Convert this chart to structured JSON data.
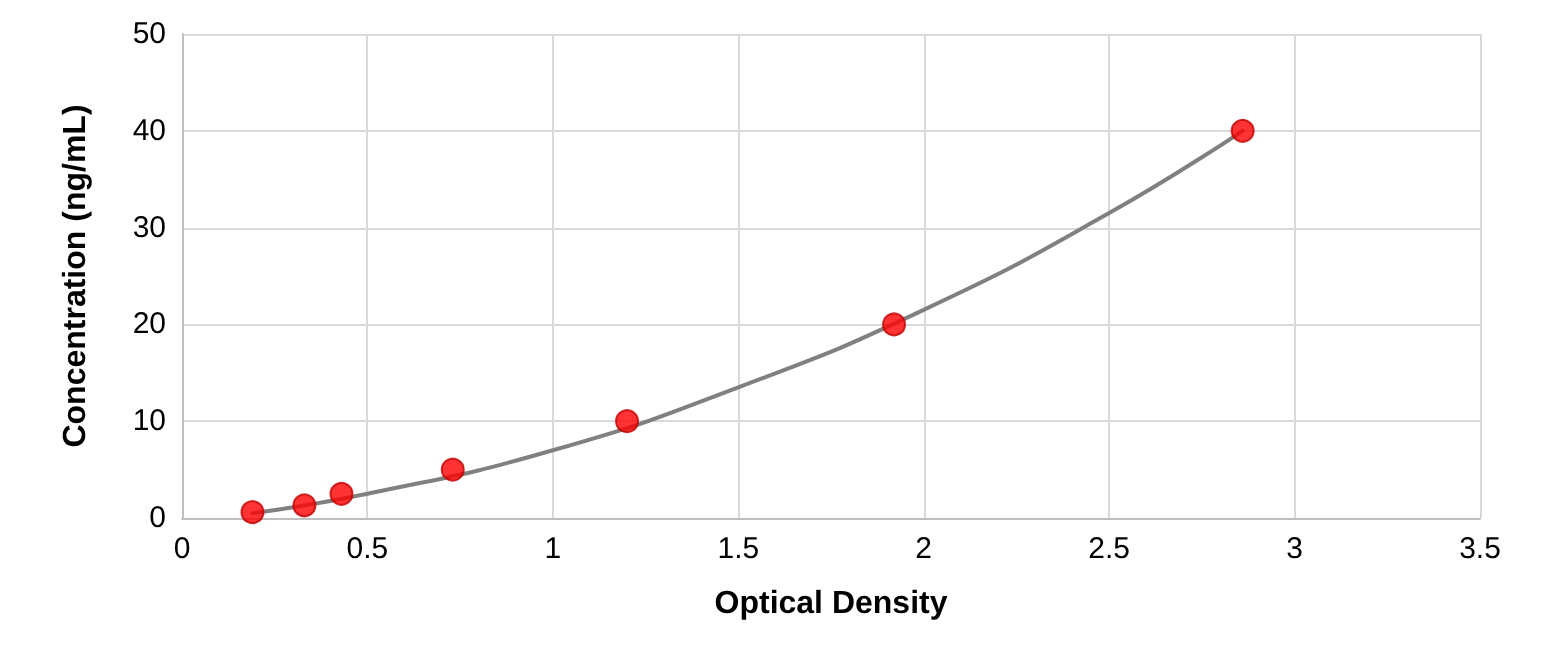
{
  "chart_data": {
    "type": "scatter",
    "xlabel": "Optical Density",
    "ylabel": "Concentration (ng/mL)",
    "xlim": [
      0,
      3.5
    ],
    "xticks": [
      0,
      0.5,
      1,
      1.5,
      2,
      2.5,
      3,
      3.5
    ],
    "ylim": [
      0,
      50
    ],
    "yticks": [
      0,
      10,
      20,
      30,
      40,
      50
    ],
    "grid": true,
    "marker": "circle",
    "series": [
      {
        "type": "line",
        "color": "#808080",
        "x": [
          0.19,
          0.5,
          1.0,
          1.5,
          2.0,
          2.5,
          2.86
        ],
        "values": [
          0.5,
          2.5,
          7,
          13.5,
          21.5,
          31.5,
          40
        ],
        "marker": "none"
      },
      {
        "color": "#ff0000",
        "x": [
          0.19,
          0.33,
          0.43,
          0.73,
          1.2,
          1.92,
          2.86
        ],
        "values": [
          0.6,
          1.3,
          2.5,
          5,
          10,
          20,
          40
        ]
      }
    ]
  }
}
